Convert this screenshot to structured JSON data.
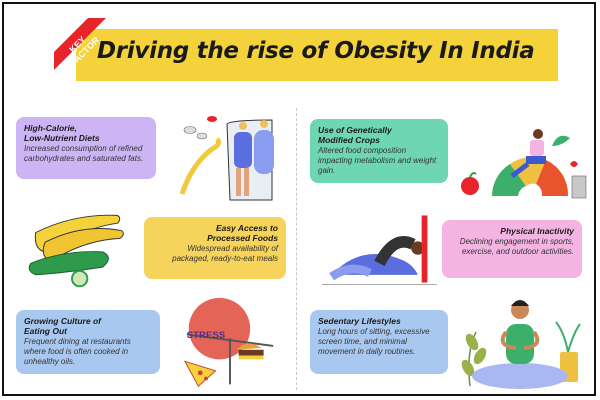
{
  "header": {
    "badge": "KEY FACTOR",
    "badge_line1": "KEY",
    "badge_line2": "FACTOR",
    "title": "Driving the rise of Obesity In India"
  },
  "colors": {
    "banner": "#f4d23c",
    "badge": "#e8242b",
    "purple": "#cdb4f5",
    "yellow": "#f6d35a",
    "blue": "#a9c8ef",
    "green": "#6fd6b3",
    "pink": "#f3b3e3",
    "blue2": "#a9c8ef"
  },
  "cards": {
    "diet": {
      "title1": "High-Calorie,",
      "title2": "Low-Nutrient Diets",
      "desc": "Increased consumption of refined carbohydrates and saturated fats."
    },
    "processed": {
      "title1": "Easy Access to",
      "title2": "Processed Foods",
      "desc": "Widespread availability of packaged, ready-to-eat meals"
    },
    "eating_out": {
      "title1": "Growing Culture of",
      "title2": "Eating Out",
      "desc": "Frequent dining at restaurants where food is often cooked in unhealthy oils."
    },
    "gmo": {
      "title1": "Use of Genetically",
      "title2": "Modified Crops",
      "desc": "Altered food composition impacting metabolism and weight gain."
    },
    "inactivity": {
      "title": "Physical Inactivity",
      "desc": "Declining engagement in sports, exercise, and outdoor activities."
    },
    "sedentary": {
      "title": "Sedentary Lifestyles",
      "desc": "Long hours of sitting, excessive screen time, and minimal movement in daily routines."
    }
  },
  "illustrations": {
    "stress_label": "STRESS"
  },
  "icons": [
    "mirror-weight-icon",
    "pills-icon",
    "measuring-tape-icon",
    "banana-icon",
    "cucumber-icon",
    "stress-scale-icon",
    "burger-icon",
    "pizza-icon",
    "fitness-gauge-icon",
    "apple-icon",
    "yoga-backbend-icon",
    "meditation-person-icon",
    "plant-icon",
    "heart-icon"
  ]
}
